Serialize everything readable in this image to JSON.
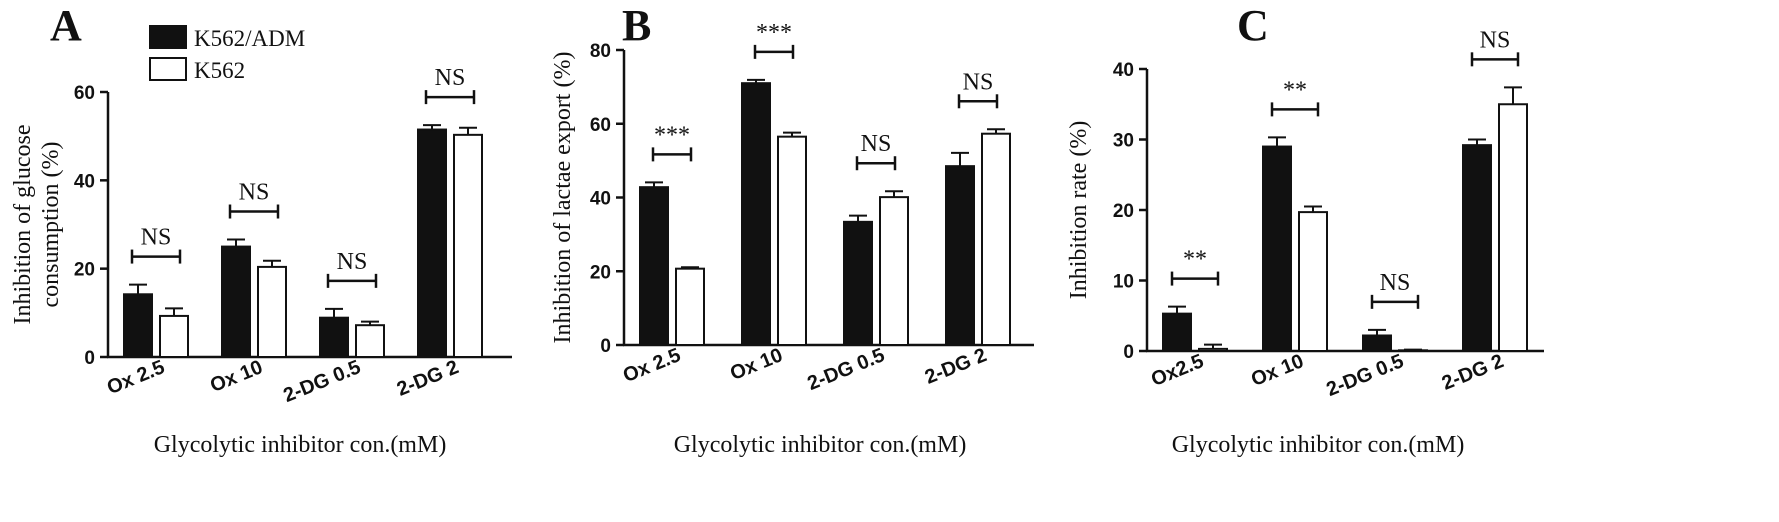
{
  "legend": {
    "series": [
      "K562/ADM",
      "K562"
    ],
    "colors": [
      "#111111",
      "#ffffff"
    ]
  },
  "chart_data": [
    {
      "panel": "A",
      "type": "bar",
      "categories": [
        "Ox 2.5",
        "Ox 10",
        "2-DG 0.5",
        "2-DG 2"
      ],
      "series": [
        {
          "name": "K562/ADM",
          "values": [
            14.2,
            25.0,
            8.9,
            51.5
          ],
          "errors": [
            2.2,
            1.6,
            2.0,
            1.0
          ]
        },
        {
          "name": "K562",
          "values": [
            9.3,
            20.4,
            7.2,
            50.3
          ],
          "errors": [
            1.7,
            1.4,
            0.8,
            1.6
          ]
        }
      ],
      "significance": [
        "NS",
        "NS",
        "NS",
        "NS"
      ],
      "xlabel": "Glycolytic inhibitor con.(mM)",
      "ylabel": "Inhibition of glucose consumption (%)",
      "ylim": [
        0,
        60
      ],
      "yticks": [
        "0",
        "20",
        "40",
        "60"
      ]
    },
    {
      "panel": "B",
      "type": "bar",
      "categories": [
        "Ox 2.5",
        "Ox 10",
        "2-DG 0.5",
        "2-DG 2"
      ],
      "series": [
        {
          "name": "K562/ADM",
          "values": [
            42.8,
            71.0,
            33.4,
            48.5
          ],
          "errors": [
            1.3,
            0.9,
            1.7,
            3.6
          ]
        },
        {
          "name": "K562",
          "values": [
            20.7,
            56.5,
            40.1,
            57.3
          ],
          "errors": [
            0.4,
            1.1,
            1.6,
            1.2
          ]
        }
      ],
      "significance": [
        "***",
        "***",
        "NS",
        "NS"
      ],
      "xlabel": "Glycolytic inhibitor con.(mM)",
      "ylabel": "Inhibition of lactae export (%)",
      "ylim": [
        0,
        80
      ],
      "yticks": [
        "0",
        "20",
        "40",
        "60",
        "80"
      ]
    },
    {
      "panel": "C",
      "type": "bar",
      "categories": [
        "Ox2.5",
        "Ox 10",
        "2-DG 0.5",
        "2-DG 2"
      ],
      "series": [
        {
          "name": "K562/ADM",
          "values": [
            5.3,
            29.0,
            2.2,
            29.2
          ],
          "errors": [
            1.0,
            1.3,
            0.8,
            0.8
          ]
        },
        {
          "name": "K562",
          "values": [
            0.3,
            19.7,
            0.1,
            35.0
          ],
          "errors": [
            0.6,
            0.8,
            0.1,
            2.4
          ]
        }
      ],
      "significance": [
        "**",
        "**",
        "NS",
        "NS"
      ],
      "xlabel": "Glycolytic inhibitor con.(mM)",
      "ylabel": "Inhibition rate (%)",
      "ylim": [
        0,
        40
      ],
      "yticks": [
        "0",
        "10",
        "20",
        "30",
        "40"
      ]
    }
  ]
}
